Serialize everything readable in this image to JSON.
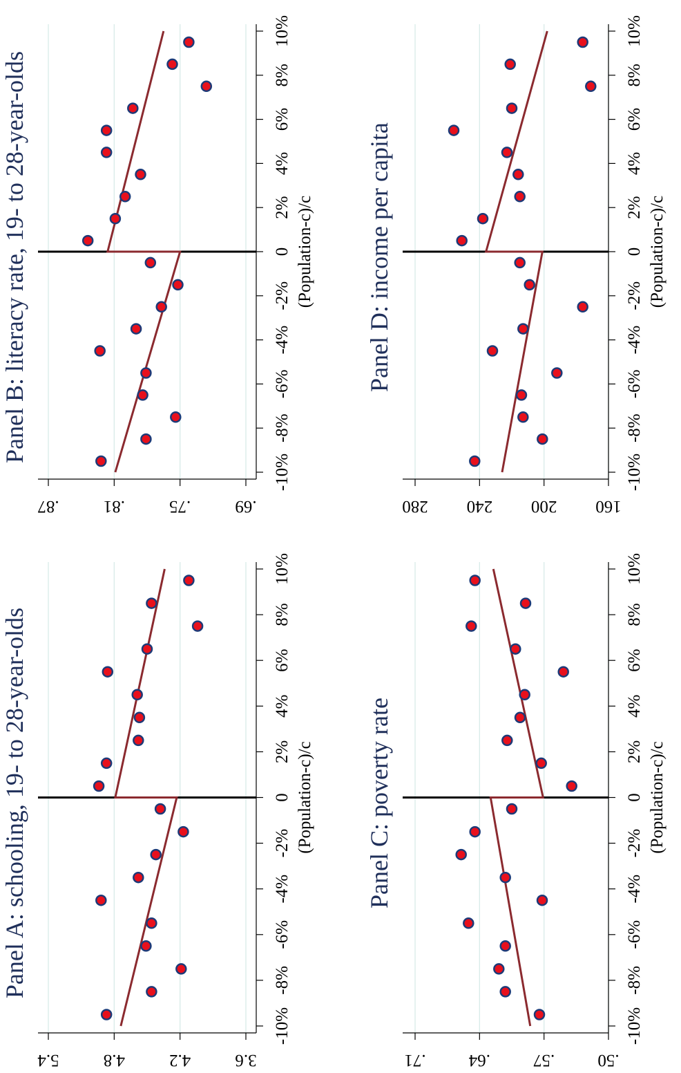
{
  "figure": {
    "x_tick_labels": [
      "-10%",
      "-8%",
      "-6%",
      "-4%",
      "-2%",
      "0",
      "2%",
      "4%",
      "6%",
      "8%",
      "10%"
    ],
    "x_axis_label": "(Population-c)/c",
    "colors": {
      "marker_fill": "#e8101c",
      "marker_edge": "#1d3a78",
      "fit_line": "#8b2a2f",
      "grid": "#d8ebe8",
      "title": "#1f2f5a",
      "axis": "#000000"
    }
  },
  "chart_data": [
    {
      "type": "scatter",
      "panel": "A",
      "title": "Panel A: schooling, 19- to 28-year-olds",
      "xlabel": "(Population-c)/c",
      "ylabel": "",
      "xlim": [
        -0.105,
        0.105
      ],
      "ylim": [
        3.6,
        5.4
      ],
      "y_ticks": [
        3.6,
        4.2,
        4.8,
        5.4
      ],
      "y_tick_labels": [
        "3.6",
        "4.2",
        "4.8",
        "5.4"
      ],
      "grid": true,
      "x": [
        -0.095,
        -0.085,
        -0.075,
        -0.065,
        -0.055,
        -0.045,
        -0.035,
        -0.025,
        -0.015,
        -0.005,
        0.005,
        0.015,
        0.025,
        0.035,
        0.045,
        0.055,
        0.065,
        0.075,
        0.085,
        0.095
      ],
      "y": [
        4.87,
        4.46,
        4.19,
        4.51,
        4.46,
        4.92,
        4.58,
        4.42,
        4.17,
        4.38,
        4.94,
        4.87,
        4.58,
        4.57,
        4.59,
        4.86,
        4.5,
        4.04,
        4.46,
        4.12
      ],
      "fit_left": {
        "x": [
          -0.1,
          0.0
        ],
        "y": [
          4.74,
          4.23
        ]
      },
      "fit_right": {
        "x": [
          0.0,
          0.1
        ],
        "y": [
          4.79,
          4.34
        ]
      }
    },
    {
      "type": "scatter",
      "panel": "B",
      "title": "Panel B: literacy rate, 19- to 28-year-olds",
      "xlabel": "(Population-c)/c",
      "ylabel": "",
      "xlim": [
        -0.105,
        0.105
      ],
      "ylim": [
        0.69,
        0.87
      ],
      "y_ticks": [
        0.69,
        0.75,
        0.81,
        0.87
      ],
      "y_tick_labels": [
        ".69",
        ".75",
        ".81",
        ".87"
      ],
      "grid": true,
      "x": [
        -0.095,
        -0.085,
        -0.075,
        -0.065,
        -0.055,
        -0.045,
        -0.035,
        -0.025,
        -0.015,
        -0.005,
        0.005,
        0.015,
        0.025,
        0.035,
        0.045,
        0.055,
        0.065,
        0.075,
        0.085,
        0.095
      ],
      "y": [
        0.822,
        0.781,
        0.754,
        0.784,
        0.781,
        0.823,
        0.79,
        0.767,
        0.752,
        0.777,
        0.834,
        0.809,
        0.8,
        0.786,
        0.817,
        0.817,
        0.793,
        0.726,
        0.757,
        0.742
      ],
      "fit_left": {
        "x": [
          -0.1,
          0.0
        ],
        "y": [
          0.809,
          0.75
        ]
      },
      "fit_right": {
        "x": [
          0.0,
          0.1
        ],
        "y": [
          0.816,
          0.765
        ]
      }
    },
    {
      "type": "scatter",
      "panel": "C",
      "title": "Panel C: poverty rate",
      "xlabel": "(Population-c)/c",
      "ylabel": "",
      "xlim": [
        -0.105,
        0.105
      ],
      "ylim": [
        0.5,
        0.71
      ],
      "y_ticks": [
        0.5,
        0.57,
        0.64,
        0.71
      ],
      "y_tick_labels": [
        ".50",
        ".57",
        ".64",
        ".71"
      ],
      "grid": true,
      "x": [
        -0.095,
        -0.085,
        -0.075,
        -0.065,
        -0.055,
        -0.045,
        -0.035,
        -0.025,
        -0.015,
        -0.005,
        0.005,
        0.015,
        0.025,
        0.035,
        0.045,
        0.055,
        0.065,
        0.075,
        0.085,
        0.095
      ],
      "y": [
        0.575,
        0.612,
        0.619,
        0.612,
        0.652,
        0.572,
        0.612,
        0.66,
        0.645,
        0.605,
        0.54,
        0.573,
        0.61,
        0.596,
        0.591,
        0.549,
        0.601,
        0.649,
        0.59,
        0.645
      ],
      "fit_left": {
        "x": [
          -0.1,
          0.0
        ],
        "y": [
          0.585,
          0.628
        ]
      },
      "fit_right": {
        "x": [
          0.0,
          0.1
        ],
        "y": [
          0.571,
          0.625
        ]
      }
    },
    {
      "type": "scatter",
      "panel": "D",
      "title": "Panel D: income per capita",
      "xlabel": "(Population-c)/c",
      "ylabel": "",
      "xlim": [
        -0.105,
        0.105
      ],
      "ylim": [
        160,
        280
      ],
      "y_ticks": [
        160,
        200,
        240,
        280
      ],
      "y_tick_labels": [
        "160",
        "200",
        "240",
        "280"
      ],
      "grid": true,
      "x": [
        -0.095,
        -0.085,
        -0.075,
        -0.065,
        -0.055,
        -0.045,
        -0.035,
        -0.025,
        -0.015,
        -0.005,
        0.005,
        0.015,
        0.025,
        0.035,
        0.045,
        0.055,
        0.065,
        0.075,
        0.085,
        0.095
      ],
      "y": [
        243,
        201,
        213,
        214,
        192,
        232,
        213,
        176,
        209,
        215,
        251,
        238,
        215,
        216,
        223,
        256,
        220,
        171,
        221,
        176
      ],
      "fit_left": {
        "x": [
          -0.1,
          0.0
        ],
        "y": [
          226,
          201
        ]
      },
      "fit_right": {
        "x": [
          0.0,
          0.1
        ],
        "y": [
          236,
          198
        ]
      }
    }
  ]
}
